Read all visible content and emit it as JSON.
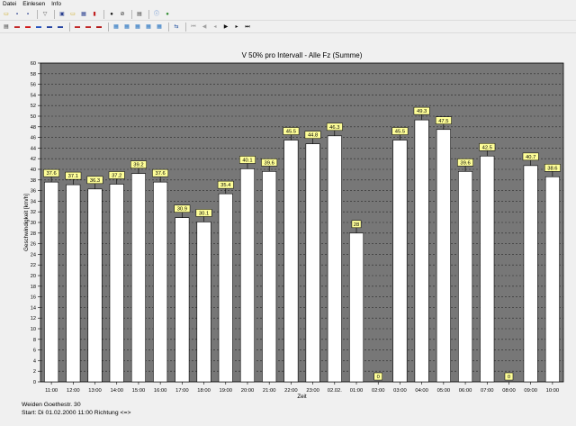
{
  "menu": [
    "Datei",
    "Einlesen",
    "Info"
  ],
  "toolbar1": [
    {
      "name": "folder-open-icon",
      "glyph": "▭",
      "color": "#c8a000"
    },
    {
      "name": "save-icon",
      "glyph": "▪",
      "color": "#2a3f8f"
    },
    {
      "name": "save-as-icon",
      "glyph": "▪",
      "color": "#2a3f8f"
    },
    {
      "sep": true
    },
    {
      "name": "filter-icon",
      "glyph": "▽",
      "color": "#555555"
    },
    {
      "sep": true
    },
    {
      "name": "copy-icon",
      "glyph": "▣",
      "color": "#2a3f8f"
    },
    {
      "name": "open-folder-icon",
      "glyph": "▭",
      "color": "#c8a000"
    },
    {
      "name": "table-icon",
      "glyph": "▦",
      "color": "#2a3f8f"
    },
    {
      "name": "chart-icon",
      "glyph": "▮",
      "color": "#c02020"
    },
    {
      "sep": true
    },
    {
      "name": "record-icon",
      "glyph": "●",
      "color": "#101010"
    },
    {
      "name": "stop-icon",
      "glyph": "⊘",
      "color": "#202020"
    },
    {
      "sep": true
    },
    {
      "name": "print-icon",
      "glyph": "▤",
      "color": "#404040"
    },
    {
      "sep": true
    },
    {
      "name": "info-icon",
      "glyph": "ⓘ",
      "color": "#1f5fbf"
    },
    {
      "name": "globe-icon",
      "glyph": "●",
      "color": "#2e8b2e"
    }
  ],
  "toolbar2": [
    {
      "name": "list-icon",
      "glyph": "▤",
      "color": "#404040"
    },
    {
      "name": "car-icon",
      "glyph": "▬",
      "color": "#c02020"
    },
    {
      "name": "car-red-icon",
      "glyph": "▬",
      "color": "#d01010"
    },
    {
      "name": "car-blue-icon",
      "glyph": "▬",
      "color": "#1f4fbf"
    },
    {
      "name": "truck-icon",
      "glyph": "▬",
      "color": "#1f3f9f"
    },
    {
      "name": "bus-icon",
      "glyph": "▬",
      "color": "#1f3f9f"
    },
    {
      "sep": true
    },
    {
      "name": "vehicle-class-1-icon",
      "glyph": "▬",
      "color": "#c02020"
    },
    {
      "name": "vehicle-class-2-icon",
      "glyph": "▬",
      "color": "#c02020"
    },
    {
      "name": "vehicle-class-3-icon",
      "glyph": "▬",
      "color": "#b01010"
    },
    {
      "sep": true
    },
    {
      "name": "chart-type-1-icon",
      "glyph": "▦",
      "color": "#1f6fbf"
    },
    {
      "name": "chart-type-2-icon",
      "glyph": "▦",
      "color": "#1f6fbf"
    },
    {
      "name": "chart-type-3-icon",
      "glyph": "▦",
      "color": "#1f6fbf"
    },
    {
      "name": "chart-type-4-icon",
      "glyph": "▦",
      "color": "#1f6fbf"
    },
    {
      "name": "chart-type-5-icon",
      "glyph": "▦",
      "color": "#1f6fbf"
    },
    {
      "sep": true
    },
    {
      "name": "swap-icon",
      "glyph": "⇆",
      "color": "#1f4f9f"
    },
    {
      "sep": true
    },
    {
      "name": "first-icon",
      "glyph": "⏮",
      "color": "#a0a0a0"
    },
    {
      "name": "prev-fast-icon",
      "glyph": "◀",
      "color": "#a0a0a0"
    },
    {
      "name": "prev-icon",
      "glyph": "◂",
      "color": "#a0a0a0"
    },
    {
      "name": "next-icon",
      "glyph": "▶",
      "color": "#101010"
    },
    {
      "name": "next-fast-icon",
      "glyph": "▸",
      "color": "#101010"
    },
    {
      "name": "last-icon",
      "glyph": "⏭",
      "color": "#101010"
    }
  ],
  "chart_data": {
    "type": "bar",
    "title": "V 50% pro Intervall - Alle Fz (Summe)",
    "xlabel": "Zeit",
    "ylabel": "Geschwindigkeit [km/h]",
    "ylim": [
      0,
      60
    ],
    "ytick_step": 2,
    "grid": true,
    "categories": [
      "11:00",
      "12:00",
      "13:00",
      "14:00",
      "15:00",
      "16:00",
      "17:00",
      "18:00",
      "19:00",
      "20:00",
      "21:00",
      "22:00",
      "23:00",
      "02.02.",
      "01:00",
      "02:00",
      "03:00",
      "04:00",
      "05:00",
      "06:00",
      "07:00",
      "08:00",
      "09:00",
      "10:00"
    ],
    "values": [
      37.6,
      37.1,
      36.3,
      37.2,
      39.2,
      37.6,
      30.9,
      30.1,
      35.4,
      40.1,
      39.6,
      45.5,
      44.8,
      46.3,
      28,
      0,
      45.5,
      49.3,
      47.5,
      39.6,
      42.5,
      0,
      40.7,
      38.6
    ],
    "data_labels": [
      "37.6",
      "37.1",
      "36.3",
      "37.2",
      "39.2",
      "37.6",
      "30.9",
      "30.1",
      "35.4",
      "40.1",
      "39.6",
      "45.5",
      "44.8",
      "46.3",
      "28",
      "0",
      "45.5",
      "49.3",
      "47.5",
      "39.6",
      "42.5",
      "0",
      "40.7",
      "38.6"
    ],
    "colors": {
      "plot_bg": "#777777",
      "bar": "#ffffff",
      "label_bg": "#ffff99",
      "grid": "#2a2a2a"
    }
  },
  "footer": {
    "location": "Weiden Goethestr. 30",
    "start_label": "Start:",
    "start_day": "Di",
    "start_date": "01.02.2000",
    "start_time": "11:00",
    "direction_label": "Richtung",
    "direction_value": "<=>"
  }
}
